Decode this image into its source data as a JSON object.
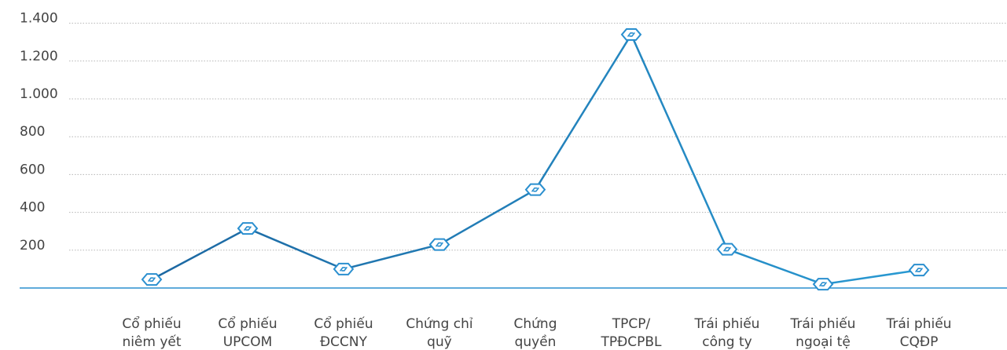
{
  "chart_data": {
    "type": "line",
    "title": "",
    "xlabel": "",
    "ylabel": "",
    "ylim": [
      0,
      1400
    ],
    "yticks": [
      200,
      400,
      600,
      800,
      1000,
      1200,
      1400
    ],
    "ytick_labels": [
      "200",
      "400",
      "600",
      "800",
      "1.000",
      "1.200",
      "1.400"
    ],
    "grid": "horizontal dotted",
    "categories": [
      [
        "Cổ phiếu",
        "niêm yết"
      ],
      [
        "Cổ phiếu",
        "UPCOM"
      ],
      [
        "Cổ phiếu",
        "ĐCCNY"
      ],
      [
        "Chứng chỉ",
        "quỹ"
      ],
      [
        "Chứng",
        "quyền"
      ],
      [
        "TPCP/",
        "TPĐCPBL"
      ],
      [
        "Trái phiếu",
        "công ty"
      ],
      [
        "Trái phiếu",
        "ngoại tệ"
      ],
      [
        "Trái phiếu",
        "CQĐP"
      ]
    ],
    "series": [
      {
        "values": [
          45,
          315,
          100,
          230,
          520,
          1340,
          205,
          20,
          95
        ]
      }
    ],
    "colors": {
      "line_start": "#1a5e98",
      "line_end": "#2a9fd8",
      "baseline": "#2a8fcf",
      "grid": "#b5b5b5",
      "marker_fill": "#ffffff",
      "marker_stroke": "#2a8fcf"
    },
    "marker_icon": "link-diamond-icon"
  }
}
